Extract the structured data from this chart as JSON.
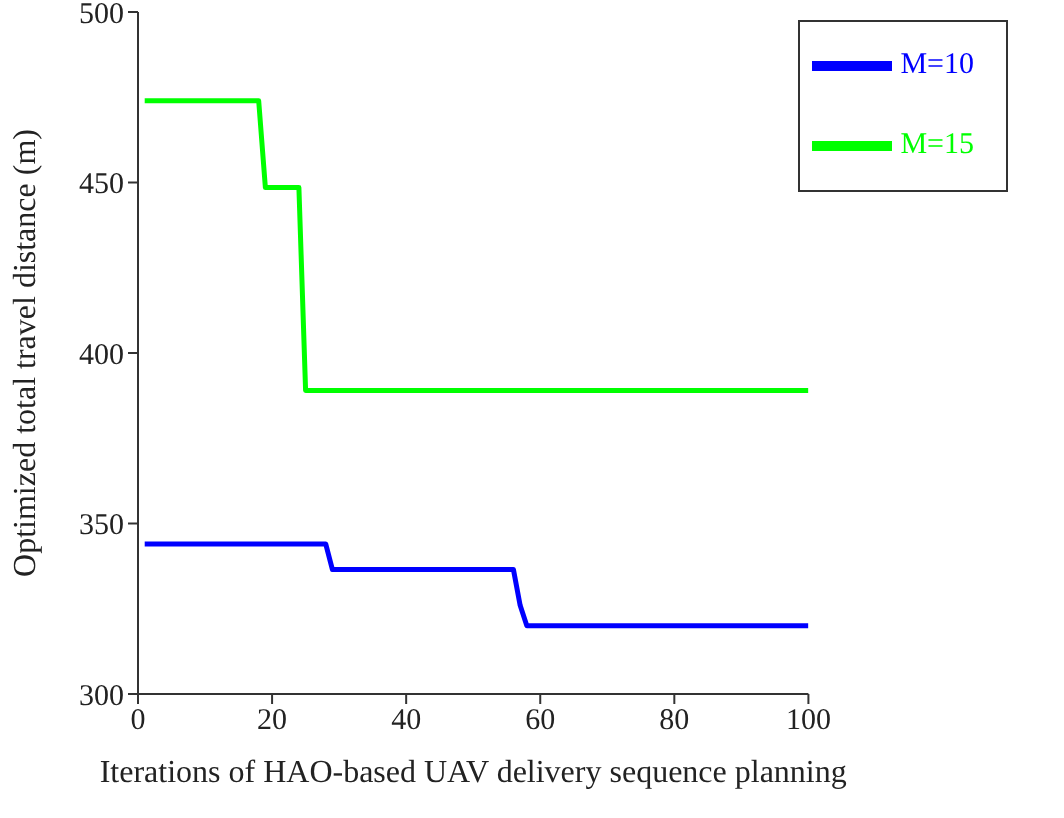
{
  "chart_data": {
    "type": "line",
    "xlabel": "Iterations of HAO-based UAV delivery sequence planning",
    "ylabel": "Optimized total travel distance (m)",
    "xlim": [
      0,
      100
    ],
    "xticks": [
      0,
      20,
      40,
      60,
      80,
      100
    ],
    "ylim": [
      300,
      500
    ],
    "yticks": [
      300,
      350,
      400,
      450,
      500
    ],
    "grid": false,
    "legend": "top right",
    "marker": "none",
    "line_style": "solid",
    "series": [
      {
        "name": "M=15",
        "color": "#00ff00",
        "x": [
          1,
          18,
          19,
          24,
          25,
          100
        ],
        "values": [
          474,
          474,
          448.5,
          448.5,
          389,
          389
        ]
      },
      {
        "name": "M=10",
        "color": "#0000ff",
        "x": [
          1,
          28,
          29,
          56,
          57,
          58,
          100
        ],
        "values": [
          344,
          344,
          336.5,
          336.5,
          326,
          320,
          320
        ]
      }
    ]
  }
}
